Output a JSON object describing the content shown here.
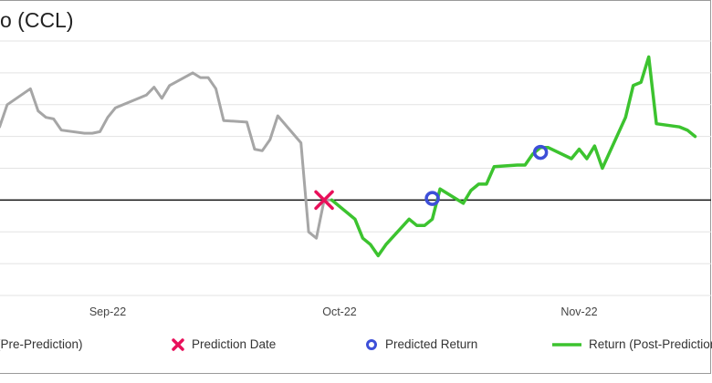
{
  "chart_data": {
    "type": "line",
    "title": "o (CCL)",
    "x_ticks": [
      "Sep-22",
      "Oct-22",
      "Nov-22"
    ],
    "baseline": 0,
    "ylim": [
      -3.0,
      5.0
    ],
    "grid": true,
    "legend_placement": "bottom",
    "series": [
      {
        "name": "(Pre-Prediction)",
        "color": "#a6a6a6",
        "x": [
          "2022-08-15",
          "2022-08-16",
          "2022-08-17",
          "2022-08-18",
          "2022-08-19",
          "2022-08-22",
          "2022-08-23",
          "2022-08-24",
          "2022-08-25",
          "2022-08-26",
          "2022-08-29",
          "2022-08-30",
          "2022-08-31",
          "2022-09-01",
          "2022-09-02",
          "2022-09-06",
          "2022-09-07",
          "2022-09-08",
          "2022-09-09",
          "2022-09-12",
          "2022-09-13",
          "2022-09-14",
          "2022-09-15",
          "2022-09-16",
          "2022-09-19",
          "2022-09-20",
          "2022-09-21",
          "2022-09-22",
          "2022-09-23",
          "2022-09-26",
          "2022-09-27",
          "2022-09-28",
          "2022-09-29",
          "2022-09-30"
        ],
        "values": [
          3.5,
          2.7,
          2.1,
          2.3,
          3.0,
          3.5,
          2.8,
          2.6,
          2.55,
          2.2,
          2.1,
          2.1,
          2.15,
          2.6,
          2.9,
          3.3,
          3.55,
          3.2,
          3.6,
          4.0,
          3.85,
          3.85,
          3.5,
          2.5,
          2.45,
          1.6,
          1.55,
          1.9,
          2.65,
          1.8,
          -1.0,
          -1.2,
          0.0,
          0.0
        ]
      },
      {
        "name": "Prediction Date",
        "color": "#e8105a",
        "x": [
          "2022-09-29"
        ],
        "values": [
          0.0
        ]
      },
      {
        "name": "Predicted Return",
        "color": "#3d4fd8",
        "x": [
          "2022-10-13",
          "2022-10-27"
        ],
        "values": [
          0.05,
          1.5
        ]
      },
      {
        "name": "Return (Post-Prediction)",
        "color": "#3cc32f",
        "x": [
          "2022-09-30",
          "2022-10-03",
          "2022-10-04",
          "2022-10-05",
          "2022-10-06",
          "2022-10-07",
          "2022-10-10",
          "2022-10-11",
          "2022-10-12",
          "2022-10-13",
          "2022-10-14",
          "2022-10-17",
          "2022-10-18",
          "2022-10-19",
          "2022-10-20",
          "2022-10-21",
          "2022-10-24",
          "2022-10-25",
          "2022-10-26",
          "2022-10-27",
          "2022-10-28",
          "2022-10-31",
          "2022-11-01",
          "2022-11-02",
          "2022-11-03",
          "2022-11-04",
          "2022-11-07",
          "2022-11-08",
          "2022-11-09",
          "2022-11-10",
          "2022-11-11",
          "2022-11-14",
          "2022-11-15",
          "2022-11-16"
        ],
        "values": [
          0.0,
          -0.6,
          -1.2,
          -1.4,
          -1.75,
          -1.4,
          -0.6,
          -0.8,
          -0.8,
          -0.6,
          0.35,
          -0.1,
          0.3,
          0.5,
          0.5,
          1.05,
          1.1,
          1.1,
          1.45,
          1.65,
          1.65,
          1.3,
          1.6,
          1.3,
          1.7,
          1.0,
          2.6,
          3.6,
          3.7,
          4.5,
          2.4,
          2.3,
          2.2,
          2.0
        ]
      }
    ]
  }
}
